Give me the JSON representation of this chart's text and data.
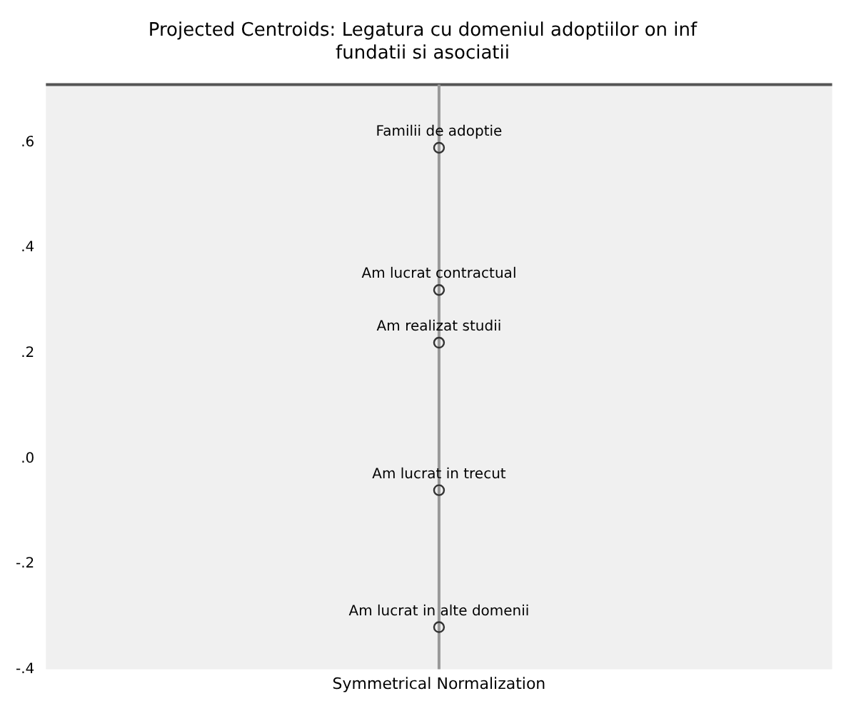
{
  "chart_data": {
    "type": "scatter",
    "title": "Projected Centroids: Legatura cu domeniul adoptiilor on inf fundatii si asociatii",
    "xlabel": "Symmetrical Normalization",
    "categories": [
      null
    ],
    "series": [
      {
        "color": "#333333",
        "values": [
          0.59
        ]
      },
      {
        "color": "#333333",
        "values": [
          0.32
        ]
      },
      {
        "color": "#333333",
        "values": [
          0.22
        ]
      },
      {
        "color": "#333333",
        "values": [
          -0.06
        ]
      },
      {
        "color": "#333333",
        "values": [
          -0.32
        ]
      }
    ],
    "annotations": [
      {
        "text": "Familii de adoptie",
        "y": 0.59
      },
      {
        "text": "Am lucrat contractual",
        "y": 0.32
      },
      {
        "text": "Am realizat studii",
        "y": 0.22
      },
      {
        "text": "Am lucrat in trecut",
        "y": -0.06
      },
      {
        "text": "Am lucrat in alte domenii",
        "y": -0.32
      }
    ],
    "ylim": [
      -0.4,
      0.71
    ],
    "yticks": [
      {
        "value": 0.6,
        "label": ".6"
      },
      {
        "value": 0.4,
        "label": ".4"
      },
      {
        "value": 0.2,
        "label": ".2"
      },
      {
        "value": 0,
        "label": ".0"
      },
      {
        "value": -0.2,
        "label": "-.2"
      },
      {
        "value": -0.4,
        "label": "-.4"
      }
    ],
    "marker": "circle",
    "tick_labels": "y"
  }
}
